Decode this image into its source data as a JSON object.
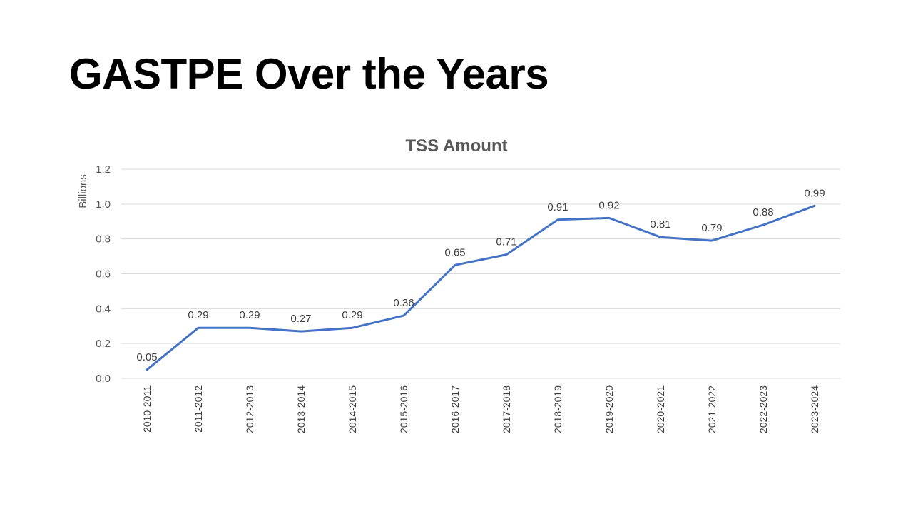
{
  "slide": {
    "title": "GASTPE Over the Years"
  },
  "colors": {
    "series": "#4472C4"
  },
  "chart_data": {
    "type": "line",
    "title": "TSS Amount",
    "xlabel": "",
    "ylabel": "Billions",
    "ylim": [
      0,
      1.2
    ],
    "yticks": [
      "0.0",
      "0.2",
      "0.4",
      "0.6",
      "0.8",
      "1.0",
      "1.2"
    ],
    "grid": true,
    "legend": "none",
    "categories": [
      "2010-2011",
      "2011-2012",
      "2012-2013",
      "2013-2014",
      "2014-2015",
      "2015-2016",
      "2016-2017",
      "2017-2018",
      "2018-2019",
      "2019-2020",
      "2020-2021",
      "2021-2022",
      "2022-2023",
      "2023-2024"
    ],
    "series": [
      {
        "values": [
          0.05,
          0.29,
          0.29,
          0.27,
          0.29,
          0.36,
          0.65,
          0.71,
          0.91,
          0.92,
          0.81,
          0.79,
          0.88,
          0.99
        ],
        "labels": [
          "0.05",
          "0.29",
          "0.29",
          "0.27",
          "0.29",
          "0.36",
          "0.65",
          "0.71",
          "0.91",
          "0.92",
          "0.81",
          "0.79",
          "0.88",
          "0.99"
        ]
      }
    ]
  }
}
